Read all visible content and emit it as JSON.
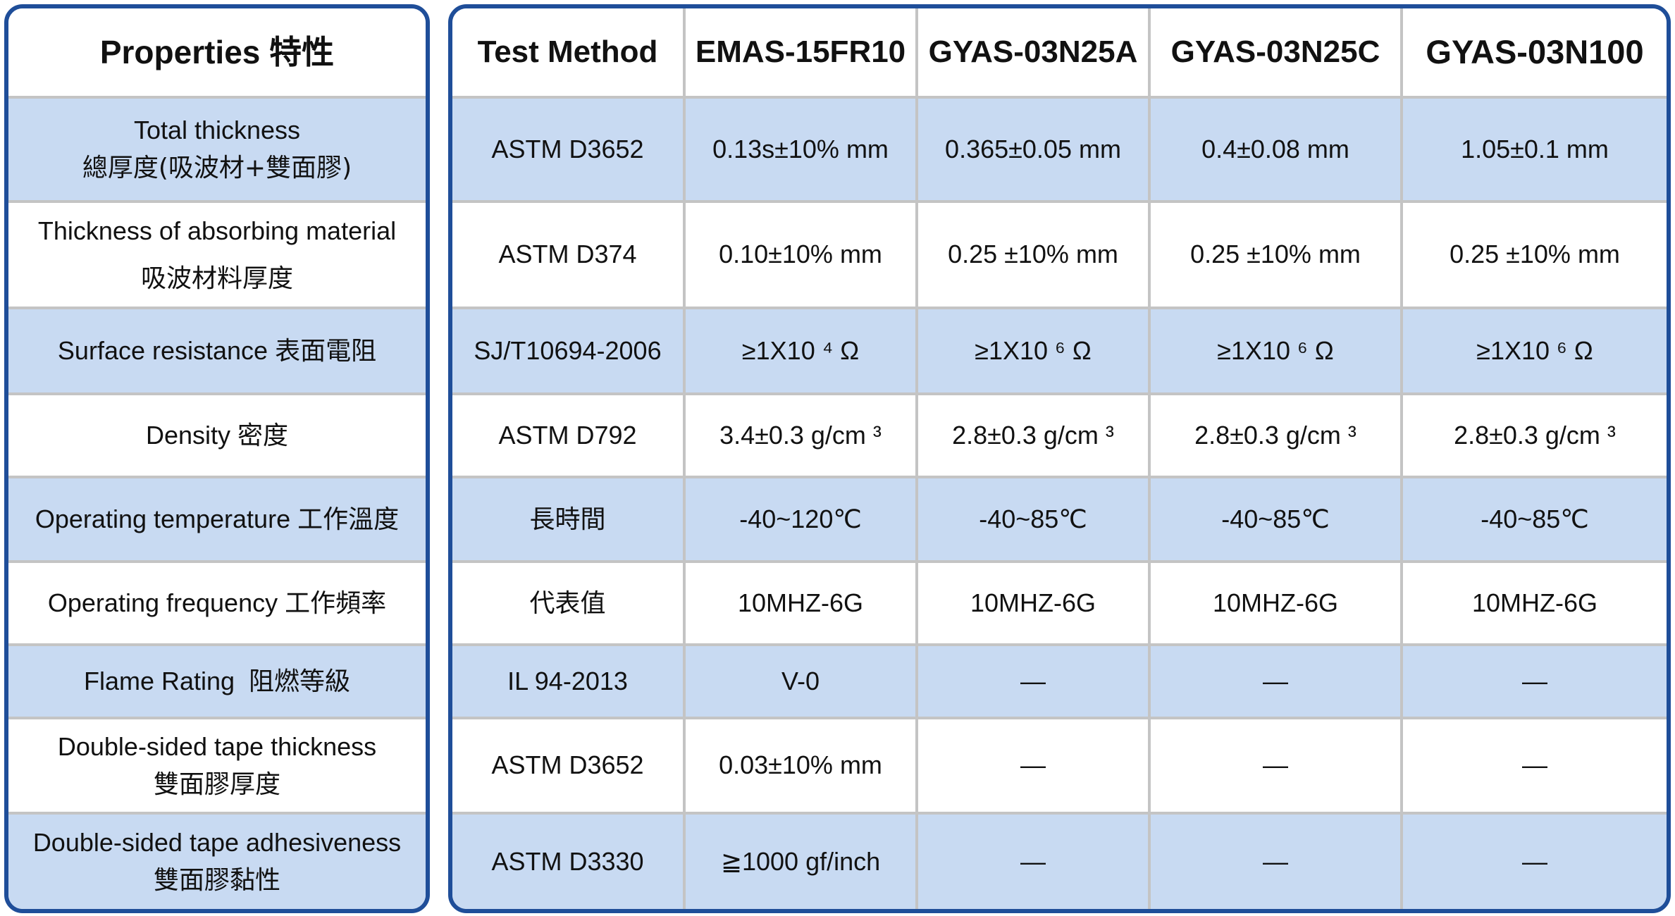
{
  "colors": {
    "border": "#1f4e99",
    "row_blue": "#c8daf2",
    "grid": "#c4c4c4"
  },
  "header": {
    "properties": "Properties 特性",
    "columns": [
      "Test Method",
      "EMAS-15FR10",
      "GYAS-03N25A",
      "GYAS-03N25C",
      "GYAS-03N100"
    ]
  },
  "rows": [
    {
      "en": "Total thickness",
      "zh": "總厚度(吸波材+雙面膠)",
      "values": [
        "ASTM D3652",
        "0.13s±10% mm",
        "0.365±0.05 mm",
        "0.4±0.08 mm",
        "1.05±0.1 mm"
      ]
    },
    {
      "en": "Thickness of absorbing material",
      "zh": "吸波材料厚度",
      "values": [
        "ASTM D374",
        "0.10±10% mm",
        "0.25 ±10% mm",
        "0.25 ±10% mm",
        "0.25 ±10% mm"
      ]
    },
    {
      "en": "Surface resistance 表面電阻",
      "zh": "",
      "values": [
        "SJ/T10694-2006",
        "≥1X10 ⁴ Ω",
        "≥1X10 ⁶ Ω",
        "≥1X10 ⁶ Ω",
        "≥1X10 ⁶ Ω"
      ]
    },
    {
      "en": "Density 密度",
      "zh": "",
      "values": [
        "ASTM D792",
        "3.4±0.3 g/cm ³",
        "2.8±0.3 g/cm ³",
        "2.8±0.3 g/cm ³",
        "2.8±0.3 g/cm ³"
      ]
    },
    {
      "en": "Operating temperature 工作溫度",
      "zh": "",
      "values": [
        "長時間",
        "-40~120℃",
        "-40~85℃",
        "-40~85℃",
        "-40~85℃"
      ]
    },
    {
      "en": "Operating frequency 工作頻率",
      "zh": "",
      "values": [
        "代表值",
        "10MHZ-6G",
        "10MHZ-6G",
        "10MHZ-6G",
        "10MHZ-6G"
      ]
    },
    {
      "en": "Flame Rating  阻燃等級",
      "zh": "",
      "values": [
        "IL 94-2013",
        "V-0",
        "—",
        "—",
        "—"
      ]
    },
    {
      "en": "Double-sided tape thickness",
      "zh": "雙面膠厚度",
      "values": [
        "ASTM D3652",
        "0.03±10% mm",
        "—",
        "—",
        "—"
      ]
    },
    {
      "en": "Double-sided tape adhesiveness",
      "zh": "雙面膠黏性",
      "values": [
        "ASTM D3330",
        "≧1000 gf/inch",
        "—",
        "—",
        "—"
      ]
    }
  ]
}
